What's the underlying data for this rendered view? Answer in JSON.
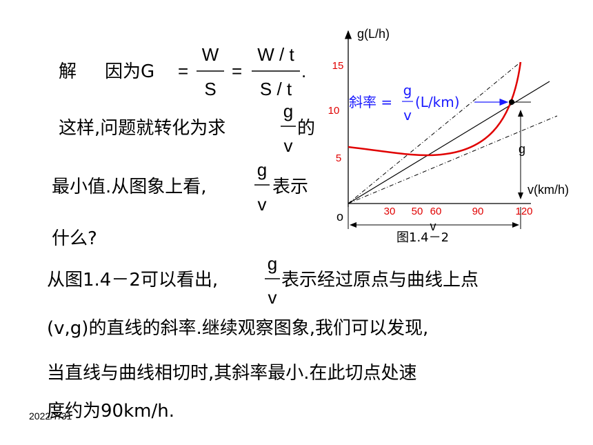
{
  "text": {
    "l1": {
      "solve": "解",
      "because": "因为G",
      "eq": "=",
      "f1": {
        "num": "W",
        "den": "S"
      },
      "f2": {
        "num": "W / t",
        "den": "S / t"
      },
      "end": "."
    },
    "l2": {
      "pre": "这样,问题就转化为求",
      "num": "g",
      "den": "v",
      "post": "的"
    },
    "l3": {
      "pre": "最小值.从图象上看,",
      "num": "g",
      "den": "v",
      "post": "表示"
    },
    "l4": "什么?",
    "l5": {
      "pre": "从图1.4－2可以看出,",
      "num": "g",
      "den": "v",
      "post": "表示经过原点与曲线上点"
    },
    "l6": "(v,g)的直线的斜率.继续观察图象,我们可以发现,",
    "l7": "当直线与曲线相切时,其斜率最小.在此切点处速",
    "l8": "度约为90km/h.",
    "date": "2022/7/31"
  },
  "figure": {
    "y_label": "g(L/h)",
    "yticks": [
      "15",
      "10",
      "5"
    ],
    "origin": "o",
    "xticks": [
      "30",
      "50",
      "60",
      "90",
      "120"
    ],
    "x_label": "v(km/h)",
    "g_label": "g",
    "v_label": "v",
    "caption": "图1.4－2",
    "slope": {
      "pre": "斜率 =",
      "num": "g",
      "den": "v",
      "unit": "(L/km)"
    }
  }
}
